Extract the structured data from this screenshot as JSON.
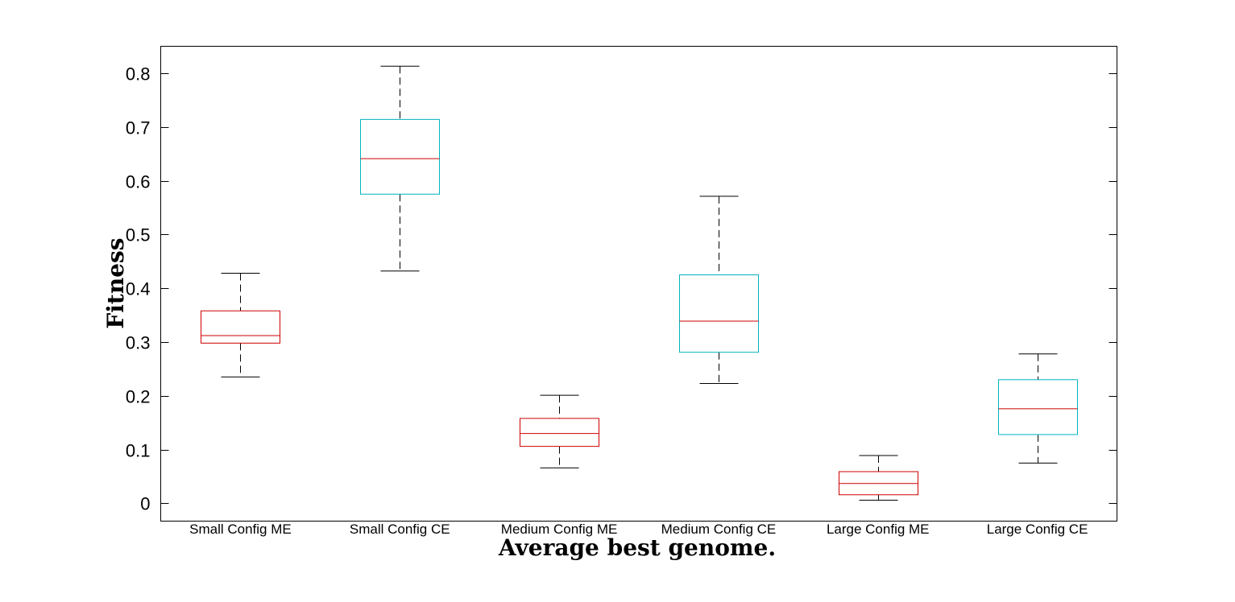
{
  "chart_data": {
    "type": "boxplot",
    "xlabel": "Average best genome.",
    "ylabel": "Fitness",
    "ylim": [
      -0.033,
      0.85
    ],
    "yticks": [
      0,
      0.1,
      0.2,
      0.3,
      0.4,
      0.5,
      0.6,
      0.7,
      0.8
    ],
    "ytick_labels": [
      "0",
      "0.1",
      "0.2",
      "0.3",
      "0.4",
      "0.5",
      "0.6",
      "0.7",
      "0.8"
    ],
    "grid": false,
    "categories": [
      "Small Config ME",
      "Small Config CE",
      "Medium Config ME",
      "Medium Config CE",
      "Large Config ME",
      "Large Config CE"
    ],
    "boxes": [
      {
        "whisker_low": 0.235,
        "q1": 0.298,
        "median": 0.312,
        "q3": 0.358,
        "whisker_high": 0.428,
        "color": "#cc0000"
      },
      {
        "whisker_low": 0.432,
        "q1": 0.575,
        "median": 0.641,
        "q3": 0.714,
        "whisker_high": 0.813,
        "color": "#00b3bf"
      },
      {
        "whisker_low": 0.066,
        "q1": 0.106,
        "median": 0.13,
        "q3": 0.158,
        "whisker_high": 0.201,
        "color": "#cc0000"
      },
      {
        "whisker_low": 0.223,
        "q1": 0.281,
        "median": 0.339,
        "q3": 0.425,
        "whisker_high": 0.571,
        "color": "#00b3bf"
      },
      {
        "whisker_low": 0.006,
        "q1": 0.016,
        "median": 0.037,
        "q3": 0.059,
        "whisker_high": 0.089,
        "color": "#cc0000"
      },
      {
        "whisker_low": 0.075,
        "q1": 0.128,
        "median": 0.176,
        "q3": 0.23,
        "whisker_high": 0.278,
        "color": "#00b3bf"
      }
    ],
    "median_color": "#cc0000",
    "whisker_color": "#000000"
  }
}
